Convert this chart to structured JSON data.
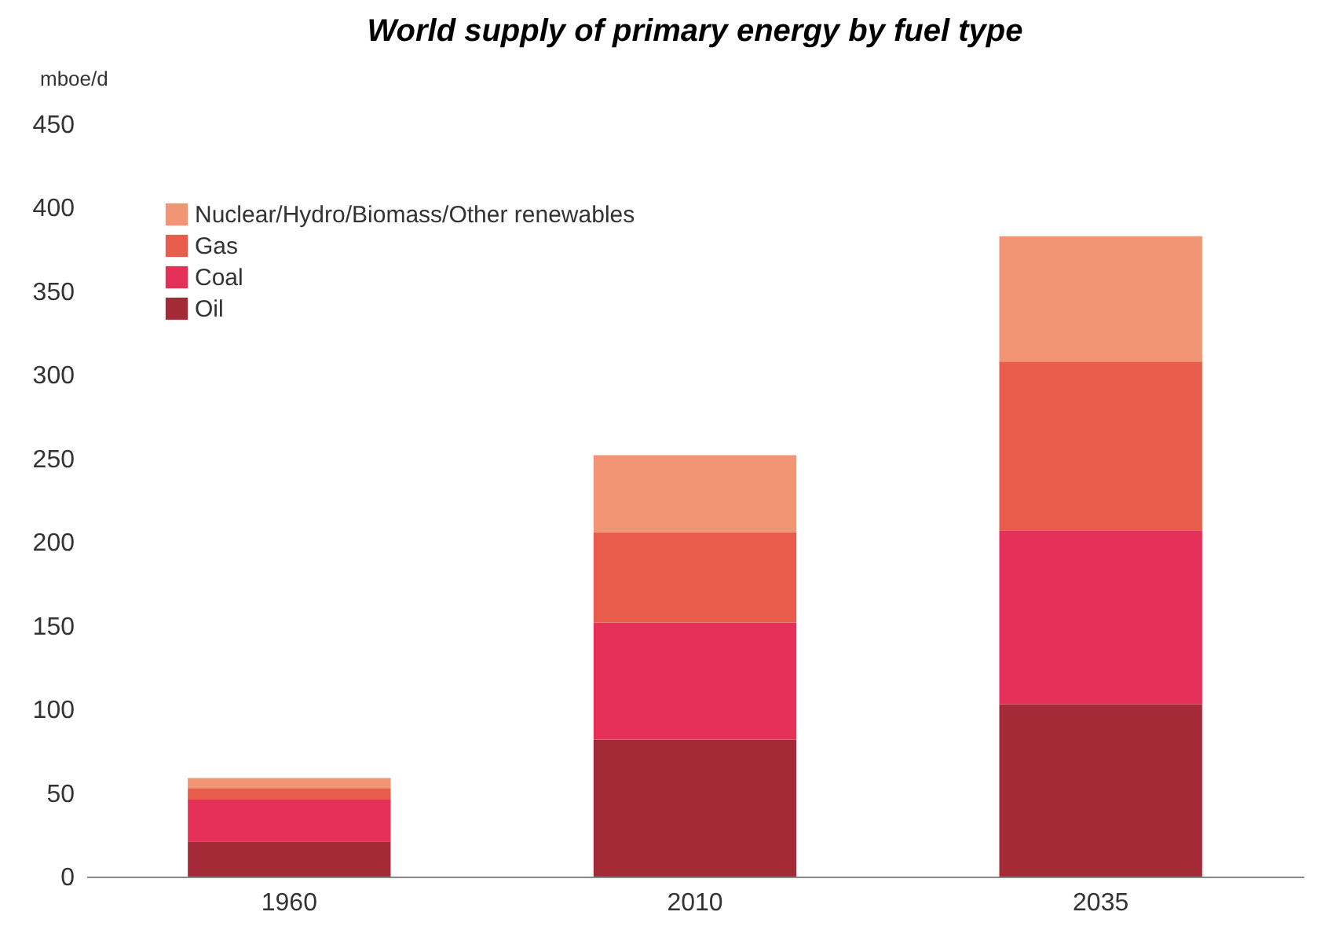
{
  "chart_data": {
    "type": "bar",
    "title": "World supply of primary energy by fuel type",
    "ylabel": "mboe/d",
    "categories": [
      "1960",
      "2010",
      "2035"
    ],
    "stacked": true,
    "ylim": [
      0,
      450
    ],
    "yticks": [
      0,
      50,
      100,
      150,
      200,
      250,
      300,
      350,
      400,
      450
    ],
    "grid": false,
    "legend": "top left",
    "series": [
      {
        "name": "Oil",
        "color": "#a52a38",
        "values": [
          21,
          82,
          103
        ]
      },
      {
        "name": "Coal",
        "color": "#e5305a",
        "values": [
          25,
          70,
          104
        ]
      },
      {
        "name": "Gas",
        "color": "#e85c4b",
        "values": [
          7,
          54,
          101
        ]
      },
      {
        "name": "Nuclear/Hydro/Biomass/Other renewables",
        "color": "#f19574",
        "values": [
          6,
          46,
          75
        ]
      }
    ]
  }
}
